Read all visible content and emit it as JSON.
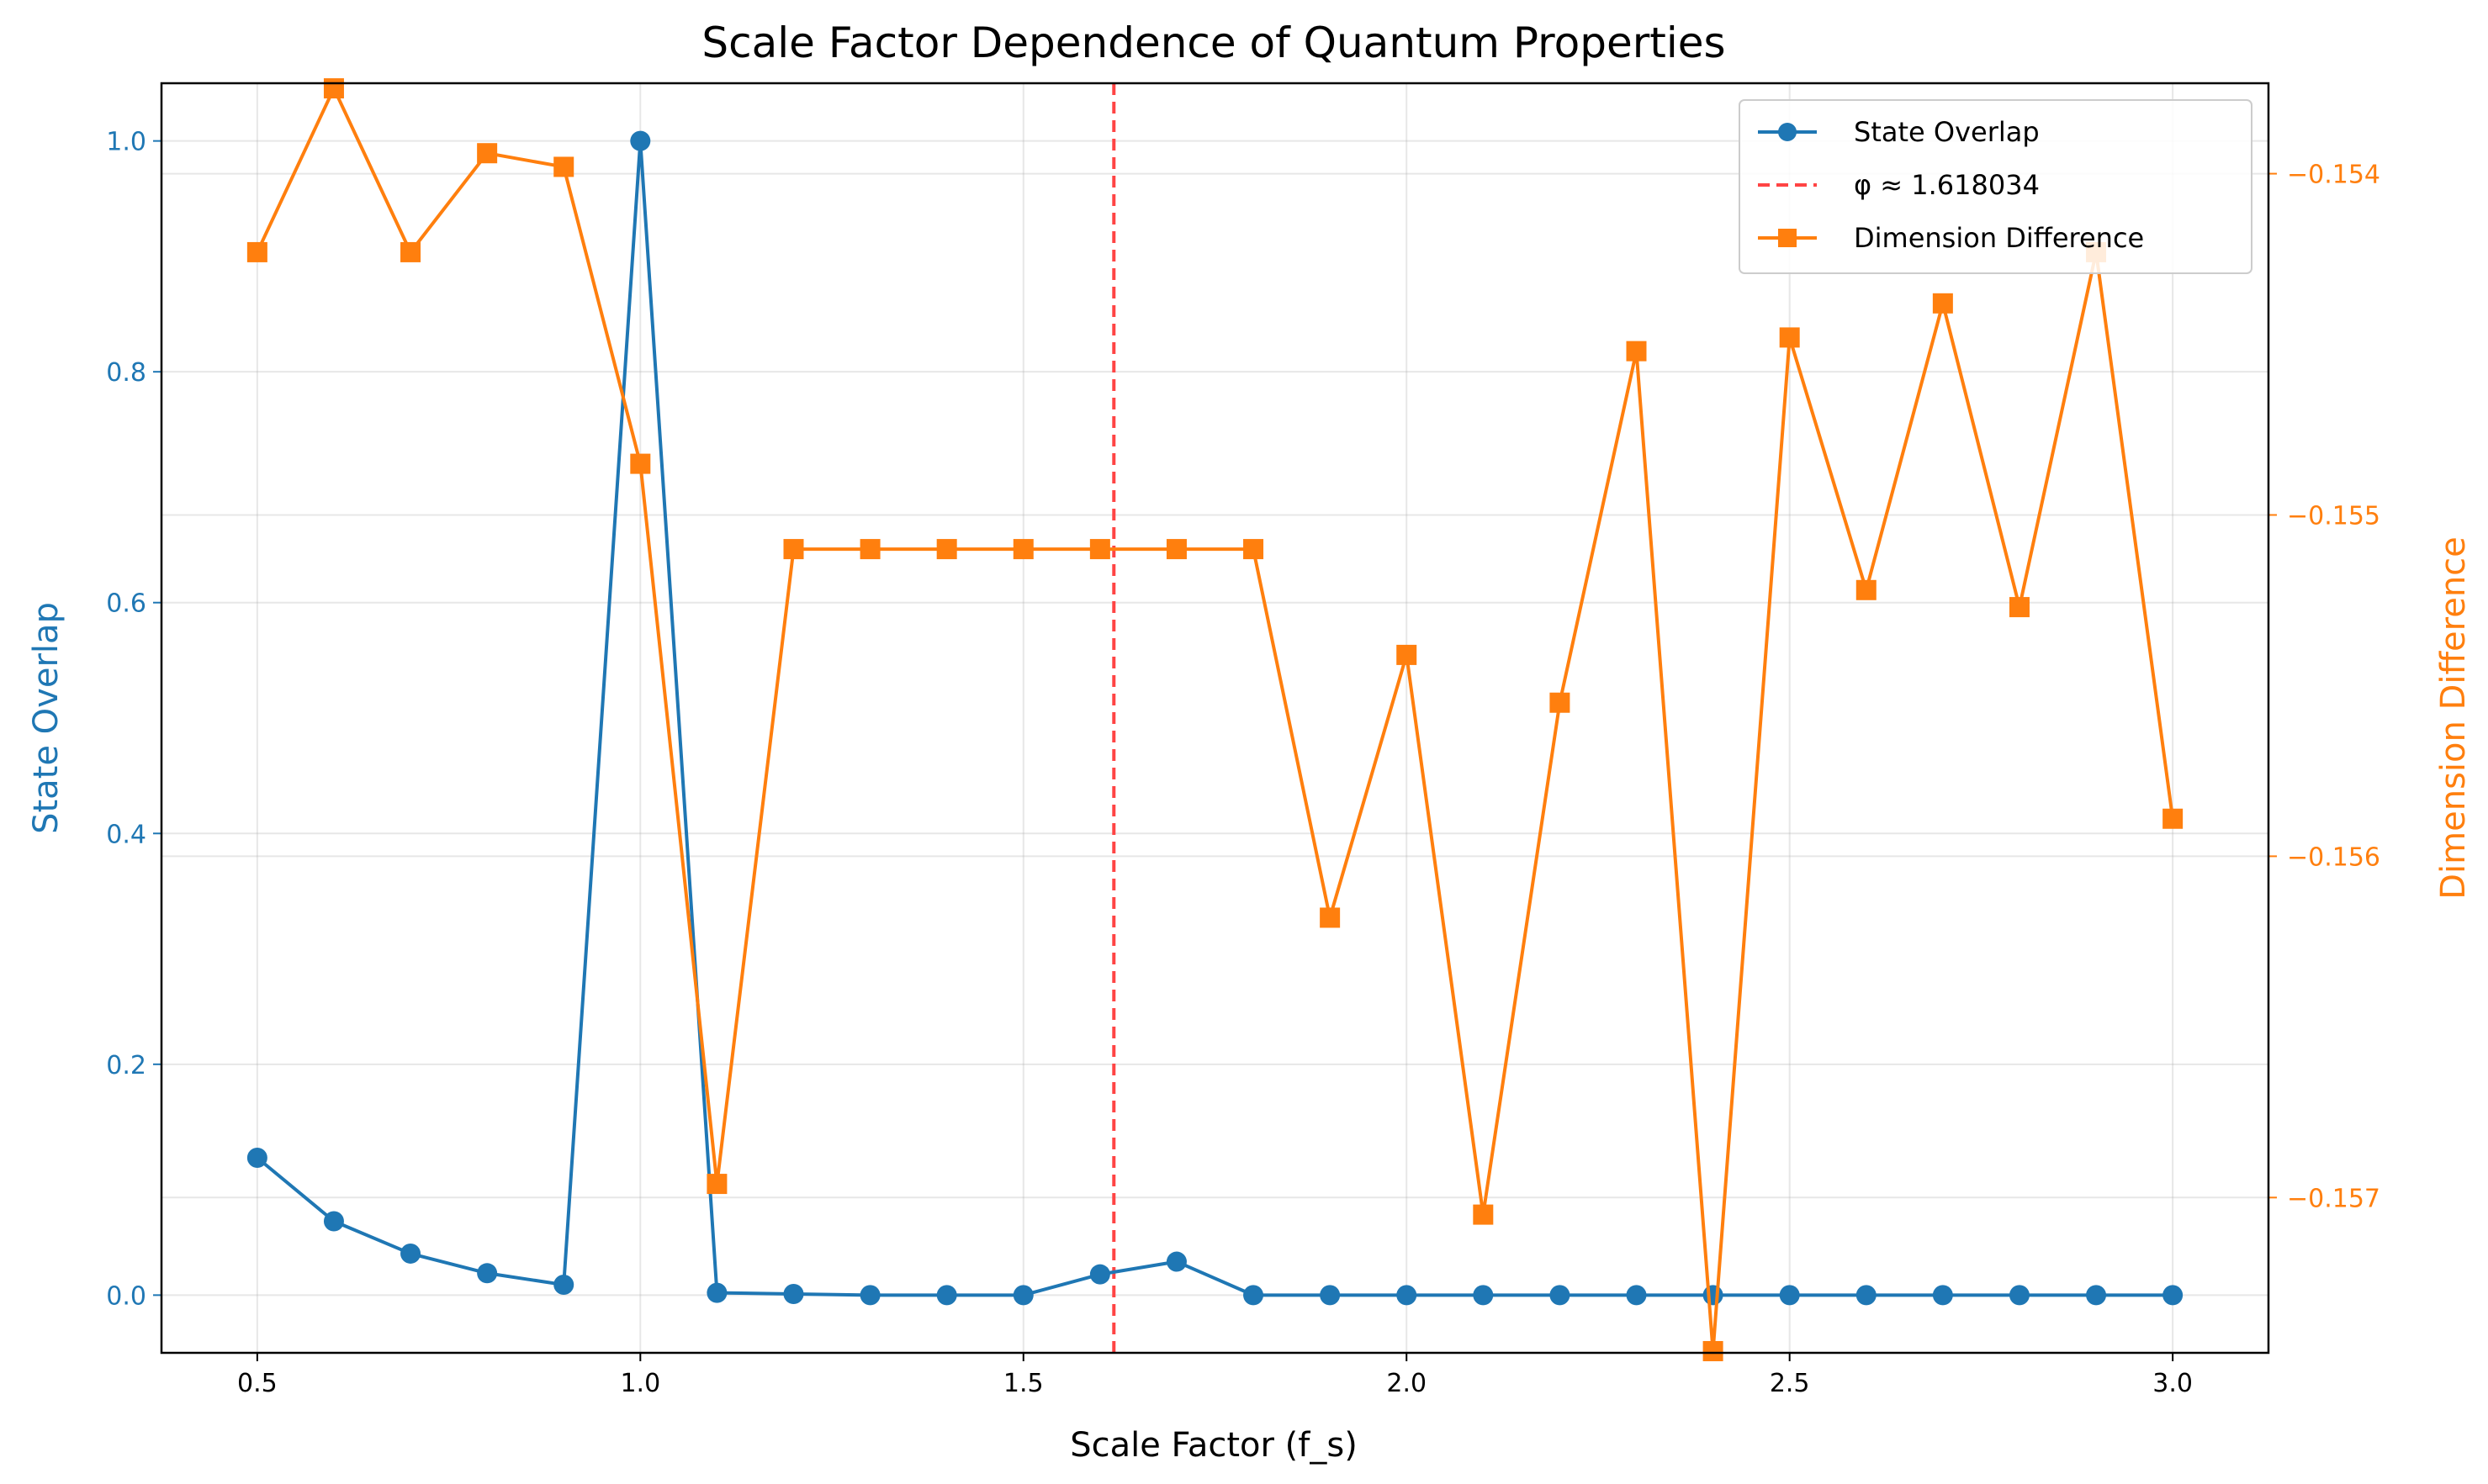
{
  "chart_data": {
    "type": "line",
    "title": "Scale Factor Dependence of Quantum Properties",
    "xlabel": "Scale Factor (f_s)",
    "ylabel_left": "State Overlap",
    "ylabel_right": "Dimension Difference",
    "xlim": [
      0.375,
      3.125
    ],
    "ylim_left": [
      -0.05,
      1.05
    ],
    "ylim_right": [
      -0.157455,
      -0.153735
    ],
    "x_ticks": [
      0.5,
      1.0,
      1.5,
      2.0,
      2.5,
      3.0
    ],
    "x_tick_labels": [
      "0.5",
      "1.0",
      "1.5",
      "2.0",
      "2.5",
      "3.0"
    ],
    "y_left_ticks": [
      0.0,
      0.2,
      0.4,
      0.6,
      0.8,
      1.0
    ],
    "y_left_tick_labels": [
      "0.0",
      "0.2",
      "0.4",
      "0.6",
      "0.8",
      "1.0"
    ],
    "y_right_ticks": [
      -0.157,
      -0.156,
      -0.155,
      -0.154
    ],
    "y_right_tick_labels": [
      "−0.157",
      "−0.156",
      "−0.155",
      "−0.154"
    ],
    "grid": true,
    "legend_position": "top-right",
    "colors": {
      "overlap": "#1f77b4",
      "dimension": "#ff7f0e",
      "phi_line": "#ff4444"
    },
    "x": [
      0.5,
      0.6,
      0.7,
      0.8,
      0.9,
      1.0,
      1.1,
      1.2,
      1.3,
      1.4,
      1.5,
      1.6,
      1.7,
      1.8,
      1.9,
      2.0,
      2.1,
      2.2,
      2.3,
      2.4,
      2.5,
      2.6,
      2.7,
      2.8,
      2.9,
      3.0
    ],
    "series": [
      {
        "name": "State Overlap",
        "axis": "left",
        "marker": "circle",
        "values": [
          0.119,
          0.064,
          0.036,
          0.019,
          0.009,
          1.0,
          0.002,
          0.001,
          0.0,
          0.0,
          0.0,
          0.018,
          0.029,
          0.0,
          0.0,
          0.0,
          0.0,
          0.0,
          0.0,
          0.0,
          0.0,
          0.0,
          0.0,
          0.0,
          0.0,
          0.0
        ]
      },
      {
        "name": "Dimension Difference",
        "axis": "right",
        "marker": "square",
        "values": [
          -0.15423,
          -0.15375,
          -0.15423,
          -0.15394,
          -0.15398,
          -0.15485,
          -0.15696,
          -0.1551,
          -0.1551,
          -0.1551,
          -0.1551,
          -0.1551,
          -0.1551,
          -0.1551,
          -0.15618,
          -0.15541,
          -0.15705,
          -0.15555,
          -0.15452,
          -0.15745,
          -0.15448,
          -0.15522,
          -0.15438,
          -0.15527,
          -0.15423,
          -0.15589
        ]
      }
    ],
    "vline": {
      "x": 1.618034,
      "label": "φ ≈ 1.618034"
    }
  }
}
